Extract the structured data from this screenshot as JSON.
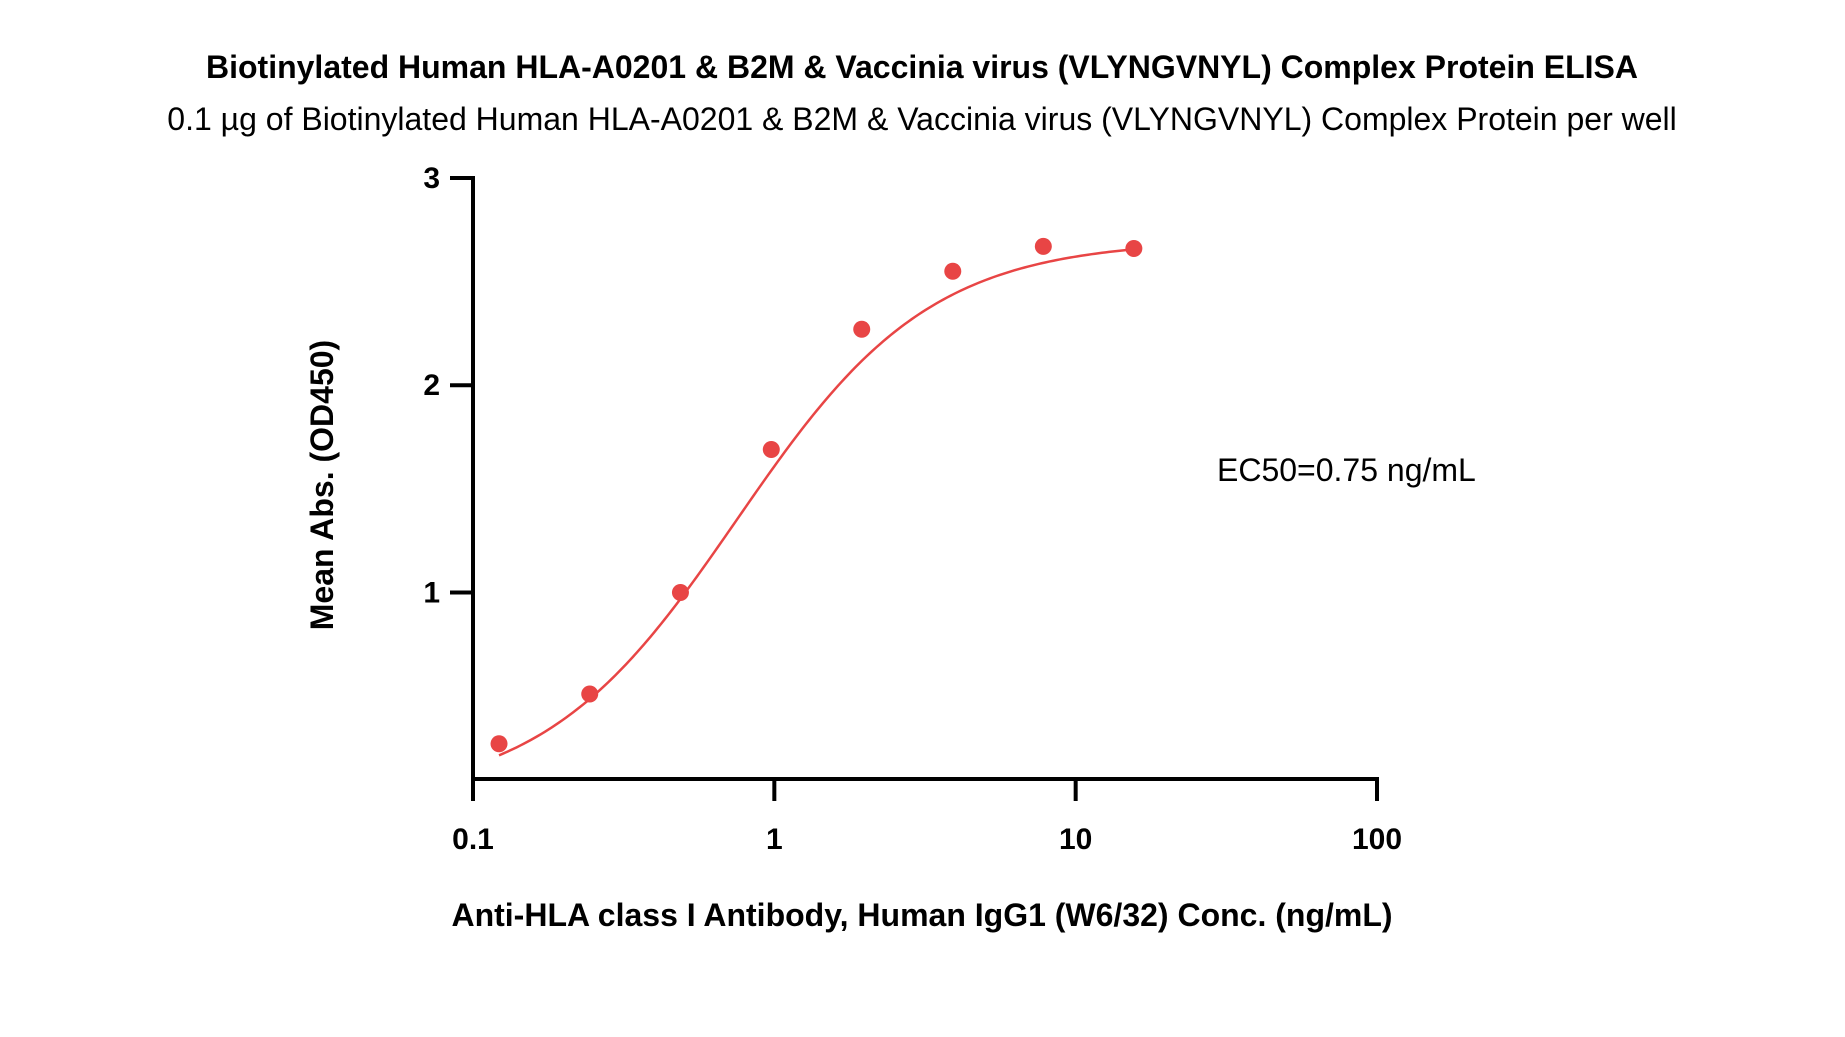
{
  "chart_data": {
    "type": "scatter",
    "title": "Biotinylated Human HLA-A0201 & B2M & Vaccinia virus (VLYNGVNYL) Complex Protein ELISA",
    "subtitle": "0.1 µg of Biotinylated Human HLA-A0201 & B2M & Vaccinia virus (VLYNGVNYL) Complex Protein per well",
    "xlabel": "Anti-HLA class I Antibody, Human IgG1 (W6/32) Conc. (ng/mL)",
    "ylabel": "Mean Abs. (OD450)",
    "x_scale": "log",
    "xlim": [
      0.1,
      100
    ],
    "ylim": [
      0.1,
      3
    ],
    "x_ticks": [
      0.1,
      1,
      10,
      100
    ],
    "x_tick_labels": [
      "0.1",
      "1",
      "10",
      "100"
    ],
    "y_ticks": [
      1,
      2,
      3
    ],
    "y_tick_labels": [
      "1",
      "2",
      "3"
    ],
    "grid": false,
    "series": [
      {
        "color": "#e84545",
        "x": [
          0.122,
          0.244,
          0.488,
          0.977,
          1.95,
          3.91,
          7.81,
          15.6
        ],
        "y": [
          0.27,
          0.51,
          1.0,
          1.69,
          2.27,
          2.55,
          2.67,
          2.66
        ],
        "fit": "4PL sigmoidal curve"
      }
    ],
    "annotations": [
      {
        "text": "EC50=0.75 ng/mL"
      }
    ]
  }
}
